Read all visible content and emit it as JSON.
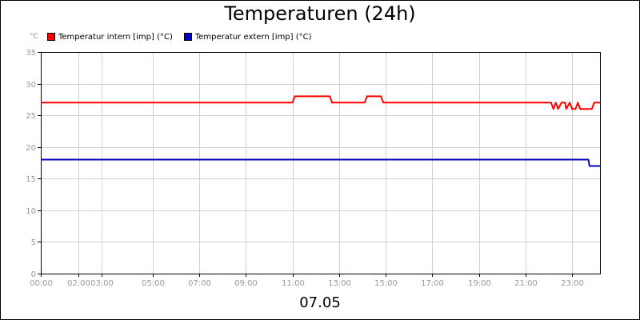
{
  "chart_data": {
    "type": "line",
    "title": "Temperaturen (24h)",
    "date_label": "07.05",
    "unit_label": "°C",
    "ylim": [
      0,
      35
    ],
    "yticks": [
      0,
      5,
      10,
      15,
      20,
      25,
      30,
      35
    ],
    "xlim": [
      0,
      24
    ],
    "xticks": [
      {
        "value": 0,
        "label": "00:00"
      },
      {
        "value": 1.6,
        "label": "02:00"
      },
      {
        "value": 2.6,
        "label": "03:00"
      },
      {
        "value": 4.8,
        "label": "05:00"
      },
      {
        "value": 6.8,
        "label": "07:00"
      },
      {
        "value": 8.8,
        "label": "09:00"
      },
      {
        "value": 10.8,
        "label": "11:00"
      },
      {
        "value": 12.8,
        "label": "13:00"
      },
      {
        "value": 14.8,
        "label": "15:00"
      },
      {
        "value": 16.8,
        "label": "17:00"
      },
      {
        "value": 18.8,
        "label": "19:00"
      },
      {
        "value": 20.8,
        "label": "21:00"
      },
      {
        "value": 22.8,
        "label": "23:00"
      }
    ],
    "grid": true,
    "legend_position": "top-left",
    "series": [
      {
        "name": "Temperatur intern [imp] (°C)",
        "color": "#ff0000",
        "points": [
          [
            0,
            27
          ],
          [
            10.8,
            27
          ],
          [
            10.9,
            28
          ],
          [
            12.4,
            28
          ],
          [
            12.5,
            27
          ],
          [
            13.9,
            27
          ],
          [
            14.0,
            28
          ],
          [
            14.6,
            28
          ],
          [
            14.7,
            27
          ],
          [
            21.9,
            27
          ],
          [
            22.0,
            26
          ],
          [
            22.1,
            27
          ],
          [
            22.2,
            26
          ],
          [
            22.35,
            27
          ],
          [
            22.5,
            27
          ],
          [
            22.55,
            26
          ],
          [
            22.7,
            27
          ],
          [
            22.8,
            26
          ],
          [
            22.95,
            26
          ],
          [
            23.05,
            27
          ],
          [
            23.15,
            26
          ],
          [
            23.65,
            26
          ],
          [
            23.75,
            27
          ],
          [
            24,
            27
          ]
        ]
      },
      {
        "name": "Temperatur extern [imp] (°C)",
        "color": "#0000c0",
        "points": [
          [
            0,
            18
          ],
          [
            23.5,
            18
          ],
          [
            23.55,
            17
          ],
          [
            24,
            17
          ]
        ]
      }
    ]
  }
}
